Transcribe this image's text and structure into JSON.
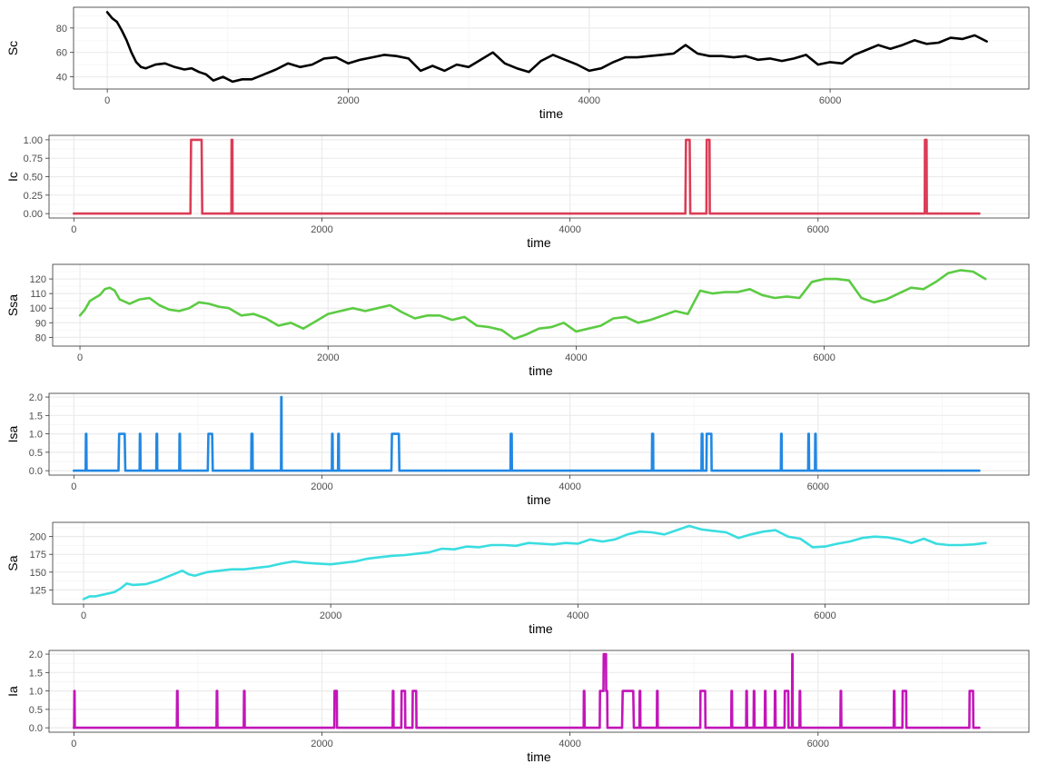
{
  "chart_data": [
    {
      "type": "line",
      "ylabel": "Sc",
      "xlabel": "time",
      "color": "#000000",
      "xlim": [
        -280,
        7650
      ],
      "ylim": [
        30,
        97
      ],
      "xticks": [
        0,
        2000,
        4000,
        6000
      ],
      "xtick_labels": [
        "0",
        "2000",
        "4000",
        "6000"
      ],
      "yticks": [
        40,
        60,
        80
      ],
      "ytick_labels": [
        "40",
        "60",
        "80"
      ],
      "grid": true,
      "series": [
        {
          "name": "Sc",
          "x": [
            0,
            40,
            80,
            120,
            160,
            200,
            240,
            280,
            320,
            400,
            480,
            560,
            640,
            700,
            760,
            820,
            880,
            960,
            1040,
            1120,
            1200,
            1300,
            1400,
            1500,
            1600,
            1700,
            1800,
            1900,
            2000,
            2100,
            2200,
            2300,
            2400,
            2500,
            2600,
            2700,
            2800,
            2900,
            3000,
            3100,
            3200,
            3300,
            3400,
            3500,
            3600,
            3700,
            3800,
            3900,
            4000,
            4100,
            4200,
            4300,
            4400,
            4500,
            4600,
            4700,
            4800,
            4900,
            5000,
            5100,
            5200,
            5300,
            5400,
            5500,
            5600,
            5700,
            5800,
            5900,
            6000,
            6100,
            6200,
            6300,
            6400,
            6500,
            6600,
            6700,
            6800,
            6900,
            7000,
            7100,
            7200,
            7300
          ],
          "y": [
            93,
            88,
            85,
            78,
            70,
            60,
            52,
            48,
            47,
            50,
            51,
            48,
            46,
            47,
            44,
            42,
            37,
            40,
            36,
            38,
            38,
            42,
            46,
            51,
            48,
            50,
            55,
            56,
            51,
            54,
            56,
            58,
            57,
            55,
            45,
            49,
            45,
            50,
            48,
            54,
            60,
            51,
            47,
            44,
            53,
            58,
            54,
            50,
            45,
            47,
            52,
            56,
            56,
            57,
            58,
            59,
            66,
            59,
            57,
            57,
            56,
            57,
            54,
            55,
            53,
            55,
            58,
            50,
            52,
            51,
            58,
            62,
            66,
            63,
            66,
            70,
            67,
            68,
            72,
            71,
            74,
            69
          ]
        }
      ]
    },
    {
      "type": "line",
      "ylabel": "Ic",
      "xlabel": "time",
      "color": "#db3d57",
      "xlim": [
        -200,
        7700
      ],
      "ylim": [
        -0.06,
        1.06
      ],
      "xticks": [
        0,
        2000,
        4000,
        6000
      ],
      "xtick_labels": [
        "0",
        "2000",
        "4000",
        "6000"
      ],
      "yticks": [
        0,
        0.25,
        0.5,
        0.75,
        1
      ],
      "ytick_labels": [
        "0.00",
        "0.25",
        "0.50",
        "0.75",
        "1.00"
      ],
      "grid": true,
      "series": [
        {
          "name": "Ic",
          "x": [
            0,
            940,
            945,
            1030,
            1035,
            1270,
            1272,
            1278,
            1280,
            4930,
            4935,
            4965,
            4970,
            5100,
            5102,
            5125,
            5127,
            6860,
            6862,
            6875,
            6877,
            7300
          ],
          "y": [
            0,
            0,
            1,
            1,
            0,
            0,
            1,
            1,
            0,
            0,
            1,
            1,
            0,
            0,
            1,
            1,
            0,
            0,
            1,
            1,
            0,
            0
          ]
        }
      ]
    },
    {
      "type": "line",
      "ylabel": "Ssa",
      "xlabel": "time",
      "color": "#5ccb43",
      "xlim": [
        -220,
        7650
      ],
      "ylim": [
        74,
        130
      ],
      "xticks": [
        0,
        2000,
        4000,
        6000
      ],
      "xtick_labels": [
        "0",
        "2000",
        "4000",
        "6000"
      ],
      "yticks": [
        80,
        90,
        100,
        110,
        120
      ],
      "ytick_labels": [
        "80",
        "90",
        "100",
        "110",
        "120"
      ],
      "grid": true,
      "series": [
        {
          "name": "Ssa",
          "x": [
            0,
            40,
            80,
            120,
            160,
            200,
            240,
            280,
            320,
            400,
            480,
            560,
            640,
            720,
            800,
            880,
            960,
            1040,
            1120,
            1200,
            1300,
            1400,
            1500,
            1600,
            1700,
            1800,
            1900,
            2000,
            2100,
            2200,
            2300,
            2400,
            2500,
            2600,
            2700,
            2800,
            2900,
            3000,
            3100,
            3200,
            3300,
            3400,
            3500,
            3600,
            3700,
            3800,
            3900,
            4000,
            4100,
            4200,
            4300,
            4400,
            4500,
            4600,
            4700,
            4800,
            4900,
            5000,
            5100,
            5200,
            5300,
            5400,
            5500,
            5600,
            5700,
            5800,
            5900,
            6000,
            6100,
            6200,
            6300,
            6400,
            6500,
            6600,
            6700,
            6800,
            6900,
            7000,
            7100,
            7200,
            7300
          ],
          "y": [
            95,
            99,
            105,
            107,
            109,
            113,
            114,
            112,
            106,
            103,
            106,
            107,
            102,
            99,
            98,
            100,
            104,
            103,
            101,
            100,
            95,
            96,
            93,
            88,
            90,
            86,
            91,
            96,
            98,
            100,
            98,
            100,
            102,
            97,
            93,
            95,
            95,
            92,
            94,
            88,
            87,
            85,
            79,
            82,
            86,
            87,
            90,
            84,
            86,
            88,
            93,
            94,
            90,
            92,
            95,
            98,
            96,
            112,
            110,
            111,
            111,
            113,
            109,
            107,
            108,
            107,
            118,
            120,
            120,
            119,
            107,
            104,
            106,
            110,
            114,
            113,
            118,
            124,
            126,
            125,
            120
          ]
        }
      ]
    },
    {
      "type": "line",
      "ylabel": "Isa",
      "xlabel": "time",
      "color": "#2288e3",
      "xlim": [
        -200,
        7700
      ],
      "ylim": [
        -0.12,
        2.1
      ],
      "xticks": [
        0,
        2000,
        4000,
        6000
      ],
      "xtick_labels": [
        "0",
        "2000",
        "4000",
        "6000"
      ],
      "yticks": [
        0,
        0.5,
        1,
        1.5,
        2
      ],
      "ytick_labels": [
        "0.0",
        "0.5",
        "1.0",
        "1.5",
        "2.0"
      ],
      "grid": true,
      "series": [
        {
          "name": "Isa",
          "x": [
            0,
            95,
            97,
            101,
            103,
            360,
            365,
            410,
            415,
            530,
            532,
            536,
            538,
            665,
            667,
            671,
            673,
            850,
            852,
            856,
            858,
            1080,
            1085,
            1115,
            1120,
            1430,
            1432,
            1440,
            1442,
            1670,
            1672,
            1674,
            1676,
            2080,
            2082,
            2086,
            2088,
            2130,
            2132,
            2136,
            2138,
            2560,
            2565,
            2620,
            2625,
            3520,
            3522,
            3530,
            3532,
            4660,
            4662,
            4670,
            4672,
            5060,
            5062,
            5068,
            5070,
            5100,
            5102,
            5140,
            5142,
            5700,
            5702,
            5706,
            5708,
            5920,
            5922,
            5926,
            5928,
            5975,
            5977,
            5981,
            5983,
            7300
          ],
          "y": [
            0,
            0,
            1,
            1,
            0,
            0,
            1,
            1,
            0,
            0,
            1,
            1,
            0,
            0,
            1,
            1,
            0,
            0,
            1,
            1,
            0,
            0,
            1,
            1,
            0,
            0,
            1,
            1,
            0,
            0,
            2,
            2,
            0,
            0,
            1,
            1,
            0,
            0,
            1,
            1,
            0,
            0,
            1,
            1,
            0,
            0,
            1,
            1,
            0,
            0,
            1,
            1,
            0,
            0,
            1,
            1,
            0,
            0,
            1,
            1,
            0,
            0,
            1,
            1,
            0,
            0,
            1,
            1,
            0,
            0,
            1,
            1,
            0,
            0
          ]
        }
      ]
    },
    {
      "type": "line",
      "ylabel": "Sa",
      "xlabel": "time",
      "color": "#3adde0",
      "xlim": [
        -250,
        7650
      ],
      "ylim": [
        105,
        220
      ],
      "xticks": [
        0,
        2000,
        4000,
        6000
      ],
      "xtick_labels": [
        "0",
        "2000",
        "4000",
        "6000"
      ],
      "yticks": [
        125,
        150,
        175,
        200
      ],
      "ytick_labels": [
        "125",
        "150",
        "175",
        "200"
      ],
      "grid": true,
      "series": [
        {
          "name": "Sa",
          "x": [
            0,
            50,
            100,
            150,
            200,
            250,
            300,
            350,
            400,
            500,
            600,
            700,
            800,
            850,
            900,
            1000,
            1100,
            1200,
            1300,
            1400,
            1500,
            1600,
            1700,
            1800,
            1900,
            2000,
            2100,
            2200,
            2300,
            2400,
            2500,
            2600,
            2700,
            2800,
            2900,
            3000,
            3100,
            3200,
            3300,
            3400,
            3500,
            3600,
            3700,
            3800,
            3900,
            4000,
            4100,
            4200,
            4300,
            4400,
            4500,
            4600,
            4700,
            4800,
            4900,
            5000,
            5100,
            5200,
            5300,
            5400,
            5500,
            5600,
            5700,
            5800,
            5900,
            6000,
            6100,
            6200,
            6300,
            6400,
            6500,
            6600,
            6700,
            6800,
            6900,
            7000,
            7100,
            7200,
            7300
          ],
          "y": [
            112,
            116,
            116,
            118,
            120,
            122,
            127,
            134,
            132,
            133,
            138,
            145,
            152,
            147,
            145,
            150,
            152,
            154,
            154,
            156,
            158,
            162,
            165,
            163,
            162,
            161,
            163,
            165,
            169,
            171,
            173,
            174,
            176,
            178,
            183,
            182,
            186,
            185,
            188,
            188,
            187,
            191,
            190,
            189,
            191,
            190,
            196,
            193,
            196,
            203,
            207,
            206,
            203,
            209,
            215,
            210,
            208,
            206,
            198,
            203,
            207,
            209,
            200,
            197,
            185,
            186,
            190,
            193,
            198,
            200,
            199,
            196,
            191,
            197,
            190,
            188,
            188,
            189,
            191
          ]
        }
      ]
    },
    {
      "type": "line",
      "ylabel": "Ia",
      "xlabel": "time",
      "color": "#c315b9",
      "xlim": [
        -200,
        7700
      ],
      "ylim": [
        -0.12,
        2.1
      ],
      "xticks": [
        0,
        2000,
        4000,
        6000
      ],
      "xtick_labels": [
        "0",
        "2000",
        "4000",
        "6000"
      ],
      "yticks": [
        0,
        0.5,
        1,
        1.5,
        2
      ],
      "ytick_labels": [
        "0.0",
        "0.5",
        "1.0",
        "1.5",
        "2.0"
      ],
      "grid": true,
      "series": [
        {
          "name": "Ia",
          "x": [
            0,
            2,
            4,
            6,
            8,
            830,
            832,
            836,
            838,
            1150,
            1152,
            1156,
            1158,
            1370,
            1372,
            1376,
            1378,
            2100,
            2102,
            2120,
            2122,
            2570,
            2572,
            2576,
            2578,
            2640,
            2642,
            2670,
            2672,
            2730,
            2732,
            2760,
            2762,
            4110,
            4112,
            4116,
            4118,
            4240,
            4242,
            4270,
            4272,
            4290,
            4292,
            4300,
            4302,
            4420,
            4425,
            4510,
            4515,
            4560,
            4562,
            4566,
            4568,
            4700,
            4702,
            4706,
            4708,
            5050,
            5052,
            5090,
            5092,
            5300,
            5302,
            5306,
            5308,
            5420,
            5422,
            5426,
            5428,
            5480,
            5482,
            5486,
            5488,
            5570,
            5572,
            5576,
            5578,
            5650,
            5652,
            5656,
            5658,
            5730,
            5732,
            5760,
            5762,
            5790,
            5792,
            5794,
            5796,
            5850,
            5852,
            5856,
            5858,
            6180,
            6182,
            6186,
            6188,
            6610,
            6612,
            6616,
            6618,
            6680,
            6682,
            6710,
            6712,
            7220,
            7222,
            7250,
            7252,
            7300
          ],
          "y": [
            0,
            0,
            1,
            1,
            0,
            0,
            1,
            1,
            0,
            0,
            1,
            1,
            0,
            0,
            1,
            1,
            0,
            0,
            1,
            1,
            0,
            0,
            1,
            1,
            0,
            0,
            1,
            1,
            0,
            0,
            1,
            1,
            0,
            0,
            1,
            1,
            0,
            0,
            1,
            1,
            2,
            2,
            1,
            1,
            0,
            0,
            1,
            1,
            0,
            0,
            1,
            1,
            0,
            0,
            1,
            1,
            0,
            0,
            1,
            1,
            0,
            0,
            1,
            1,
            0,
            0,
            1,
            1,
            0,
            0,
            1,
            1,
            0,
            0,
            1,
            1,
            0,
            0,
            1,
            1,
            0,
            0,
            1,
            1,
            0,
            0,
            2,
            2,
            0,
            0,
            1,
            1,
            0,
            0,
            1,
            1,
            0,
            0,
            1,
            1,
            0,
            0,
            1,
            1,
            0,
            0,
            1,
            1,
            0,
            0
          ]
        }
      ]
    }
  ]
}
